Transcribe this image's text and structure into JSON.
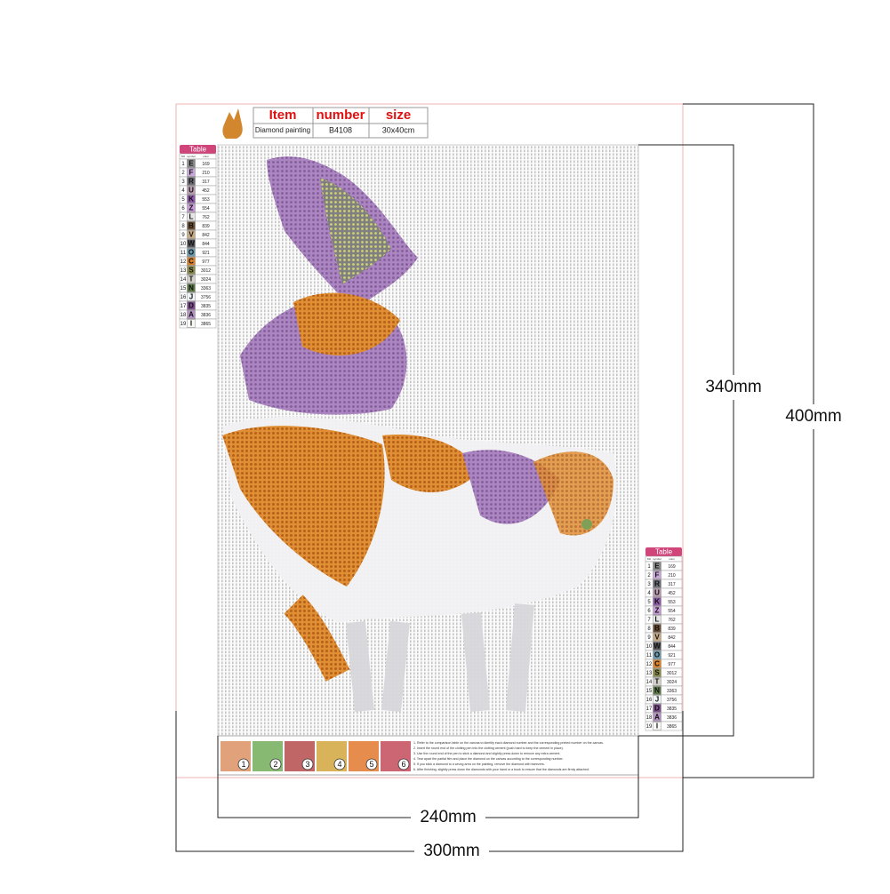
{
  "header": {
    "item_label": "Item",
    "number_label": "number",
    "size_label": "size",
    "item": "Diamond painting",
    "number": "B4108",
    "size": "30x40cm"
  },
  "table": {
    "title": "Table",
    "columns": [
      "NO",
      "symbol",
      "color"
    ],
    "rows": [
      {
        "no": 1,
        "symbol": "E",
        "color": "169",
        "swatch": "#8a8a8a"
      },
      {
        "no": 2,
        "symbol": "F",
        "color": "210",
        "swatch": "#c7a6d8"
      },
      {
        "no": 3,
        "symbol": "R",
        "color": "317",
        "swatch": "#6e6e78"
      },
      {
        "no": 4,
        "symbol": "U",
        "color": "452",
        "swatch": "#b89bb0"
      },
      {
        "no": 5,
        "symbol": "K",
        "color": "553",
        "swatch": "#8f5aa8"
      },
      {
        "no": 6,
        "symbol": "Z",
        "color": "554",
        "swatch": "#c79ad8"
      },
      {
        "no": 7,
        "symbol": "L",
        "color": "762",
        "swatch": "#e6e6e6"
      },
      {
        "no": 8,
        "symbol": "B",
        "color": "839",
        "swatch": "#6b4f32"
      },
      {
        "no": 9,
        "symbol": "V",
        "color": "842",
        "swatch": "#c7ab86"
      },
      {
        "no": 10,
        "symbol": "W",
        "color": "844",
        "swatch": "#55555a"
      },
      {
        "no": 11,
        "symbol": "O",
        "color": "921",
        "swatch": "#6d9bb0"
      },
      {
        "no": 12,
        "symbol": "C",
        "color": "977",
        "swatch": "#d9822b"
      },
      {
        "no": 13,
        "symbol": "S",
        "color": "3012",
        "swatch": "#8a8a4a"
      },
      {
        "no": 14,
        "symbol": "T",
        "color": "3024",
        "swatch": "#d2d0c8"
      },
      {
        "no": 15,
        "symbol": "N",
        "color": "3363",
        "swatch": "#5c7a48"
      },
      {
        "no": 16,
        "symbol": "J",
        "color": "3756",
        "swatch": "#eef3f6"
      },
      {
        "no": 17,
        "symbol": "D",
        "color": "3835",
        "swatch": "#7d4d8e"
      },
      {
        "no": 18,
        "symbol": "A",
        "color": "3836",
        "swatch": "#b592c4"
      },
      {
        "no": 19,
        "symbol": "I",
        "color": "3865",
        "swatch": "#f8f8f4"
      }
    ]
  },
  "steps": [
    "1",
    "2",
    "3",
    "4",
    "5",
    "6"
  ],
  "instructions": [
    "1. Refer to the comparison table on the canvas to identify each diamond number and the corresponding printed number on the canvas.",
    "2. Insert the round end of the clotting pen into the clotting cement (push hard to keep the cement in place).",
    "3. Use the round end of the pen to stick a diamond and slightly press down to remove any extra cement.",
    "4. Tear apart the partial film and place the diamond on the canvas according to the corresponding number.",
    "5. If you stick a diamond to a wrong area on the painting, remove the diamond with tweezers.",
    "6. After finishing, slightly press down the diamonds with your hand or a book to ensure that the diamonds are firmly attached."
  ],
  "dimensions": {
    "inner_height": "340mm",
    "outer_height": "400mm",
    "inner_width": "240mm",
    "outer_width": "300mm"
  }
}
